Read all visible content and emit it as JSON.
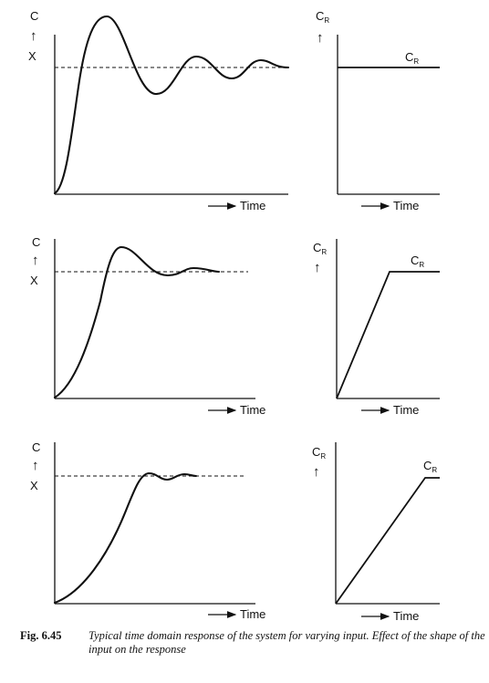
{
  "labels": {
    "response_symbol": "C",
    "arrow_up": "↑",
    "reference_symbol": "X",
    "input_symbol": "C",
    "input_subscript": "R",
    "time_axis": "Time"
  },
  "caption": {
    "figure_number": "Fig. 6.45",
    "text": "Typical time domain response of the system for varying input. Effect of the shape of the input on the response"
  },
  "panels": [
    {
      "row": 1,
      "response": "underdamped oscillation, large overshoot",
      "input": "step"
    },
    {
      "row": 2,
      "response": "moderate overshoot",
      "input": "ramp then constant"
    },
    {
      "row": 3,
      "response": "small overshoot",
      "input": "slow ramp then constant"
    }
  ]
}
